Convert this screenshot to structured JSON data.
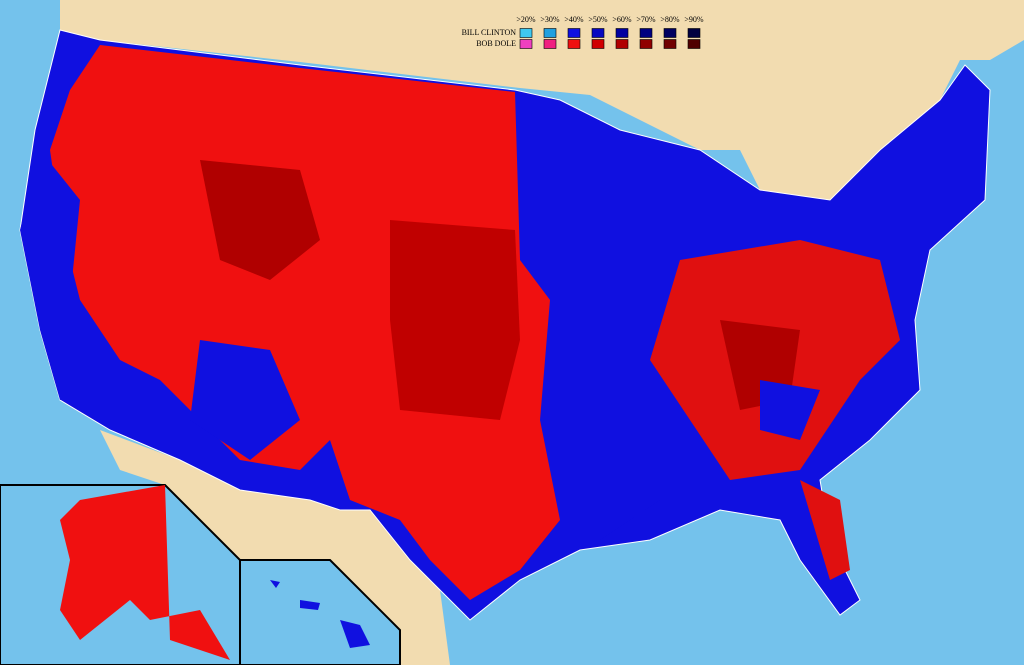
{
  "legend": {
    "thresholds": [
      ">20%",
      ">30%",
      ">40%",
      ">50%",
      ">60%",
      ">70%",
      ">80%",
      ">90%"
    ],
    "rows": [
      {
        "name": "BILL CLINTON",
        "colors": [
          "#40c8f0",
          "#20a0e0",
          "#1010e0",
          "#0808c0",
          "#0000a0",
          "#000080",
          "#000060",
          "#000040"
        ]
      },
      {
        "name": "BOB DOLE",
        "colors": [
          "#f040c0",
          "#f02080",
          "#f01010",
          "#d00000",
          "#b00000",
          "#900000",
          "#700000",
          "#500000"
        ]
      }
    ]
  }
}
